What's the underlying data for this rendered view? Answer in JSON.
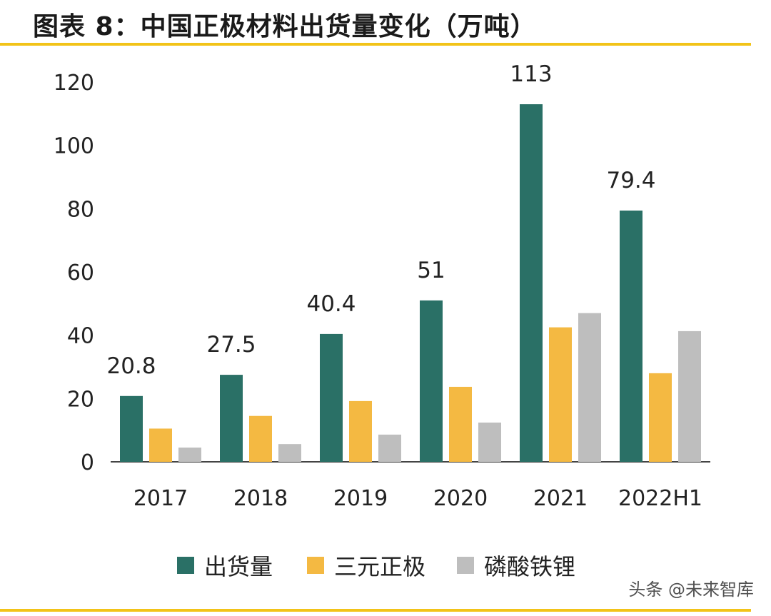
{
  "title": "图表 8：中国正极材料出货量变化（万吨）",
  "watermark": "头条 @未来智库",
  "colors": {
    "shipment": "#2a7066",
    "ncm": "#f4b942",
    "lfp": "#bebebe",
    "accent": "#f2c318"
  },
  "chart_data": {
    "type": "bar",
    "title": "中国正极材料出货量变化（万吨）",
    "categories": [
      "2017",
      "2018",
      "2019",
      "2020",
      "2021",
      "2022H1"
    ],
    "series": [
      {
        "name": "出货量",
        "values": [
          20.8,
          27.5,
          40.4,
          51,
          113,
          79.4
        ]
      },
      {
        "name": "三元正极",
        "values": [
          10.5,
          14.5,
          19.2,
          23.7,
          42.5,
          28.0
        ]
      },
      {
        "name": "磷酸铁锂",
        "values": [
          4.5,
          5.6,
          8.6,
          12.4,
          47.0,
          41.3
        ]
      }
    ],
    "data_labels": [
      "20.8",
      "27.5",
      "40.4",
      "51",
      "113",
      "79.4"
    ],
    "yticks": [
      "0",
      "20",
      "40",
      "60",
      "80",
      "100",
      "120"
    ],
    "ylim": [
      0,
      120
    ],
    "xlabel": "",
    "ylabel": "",
    "legend_position": "bottom"
  }
}
